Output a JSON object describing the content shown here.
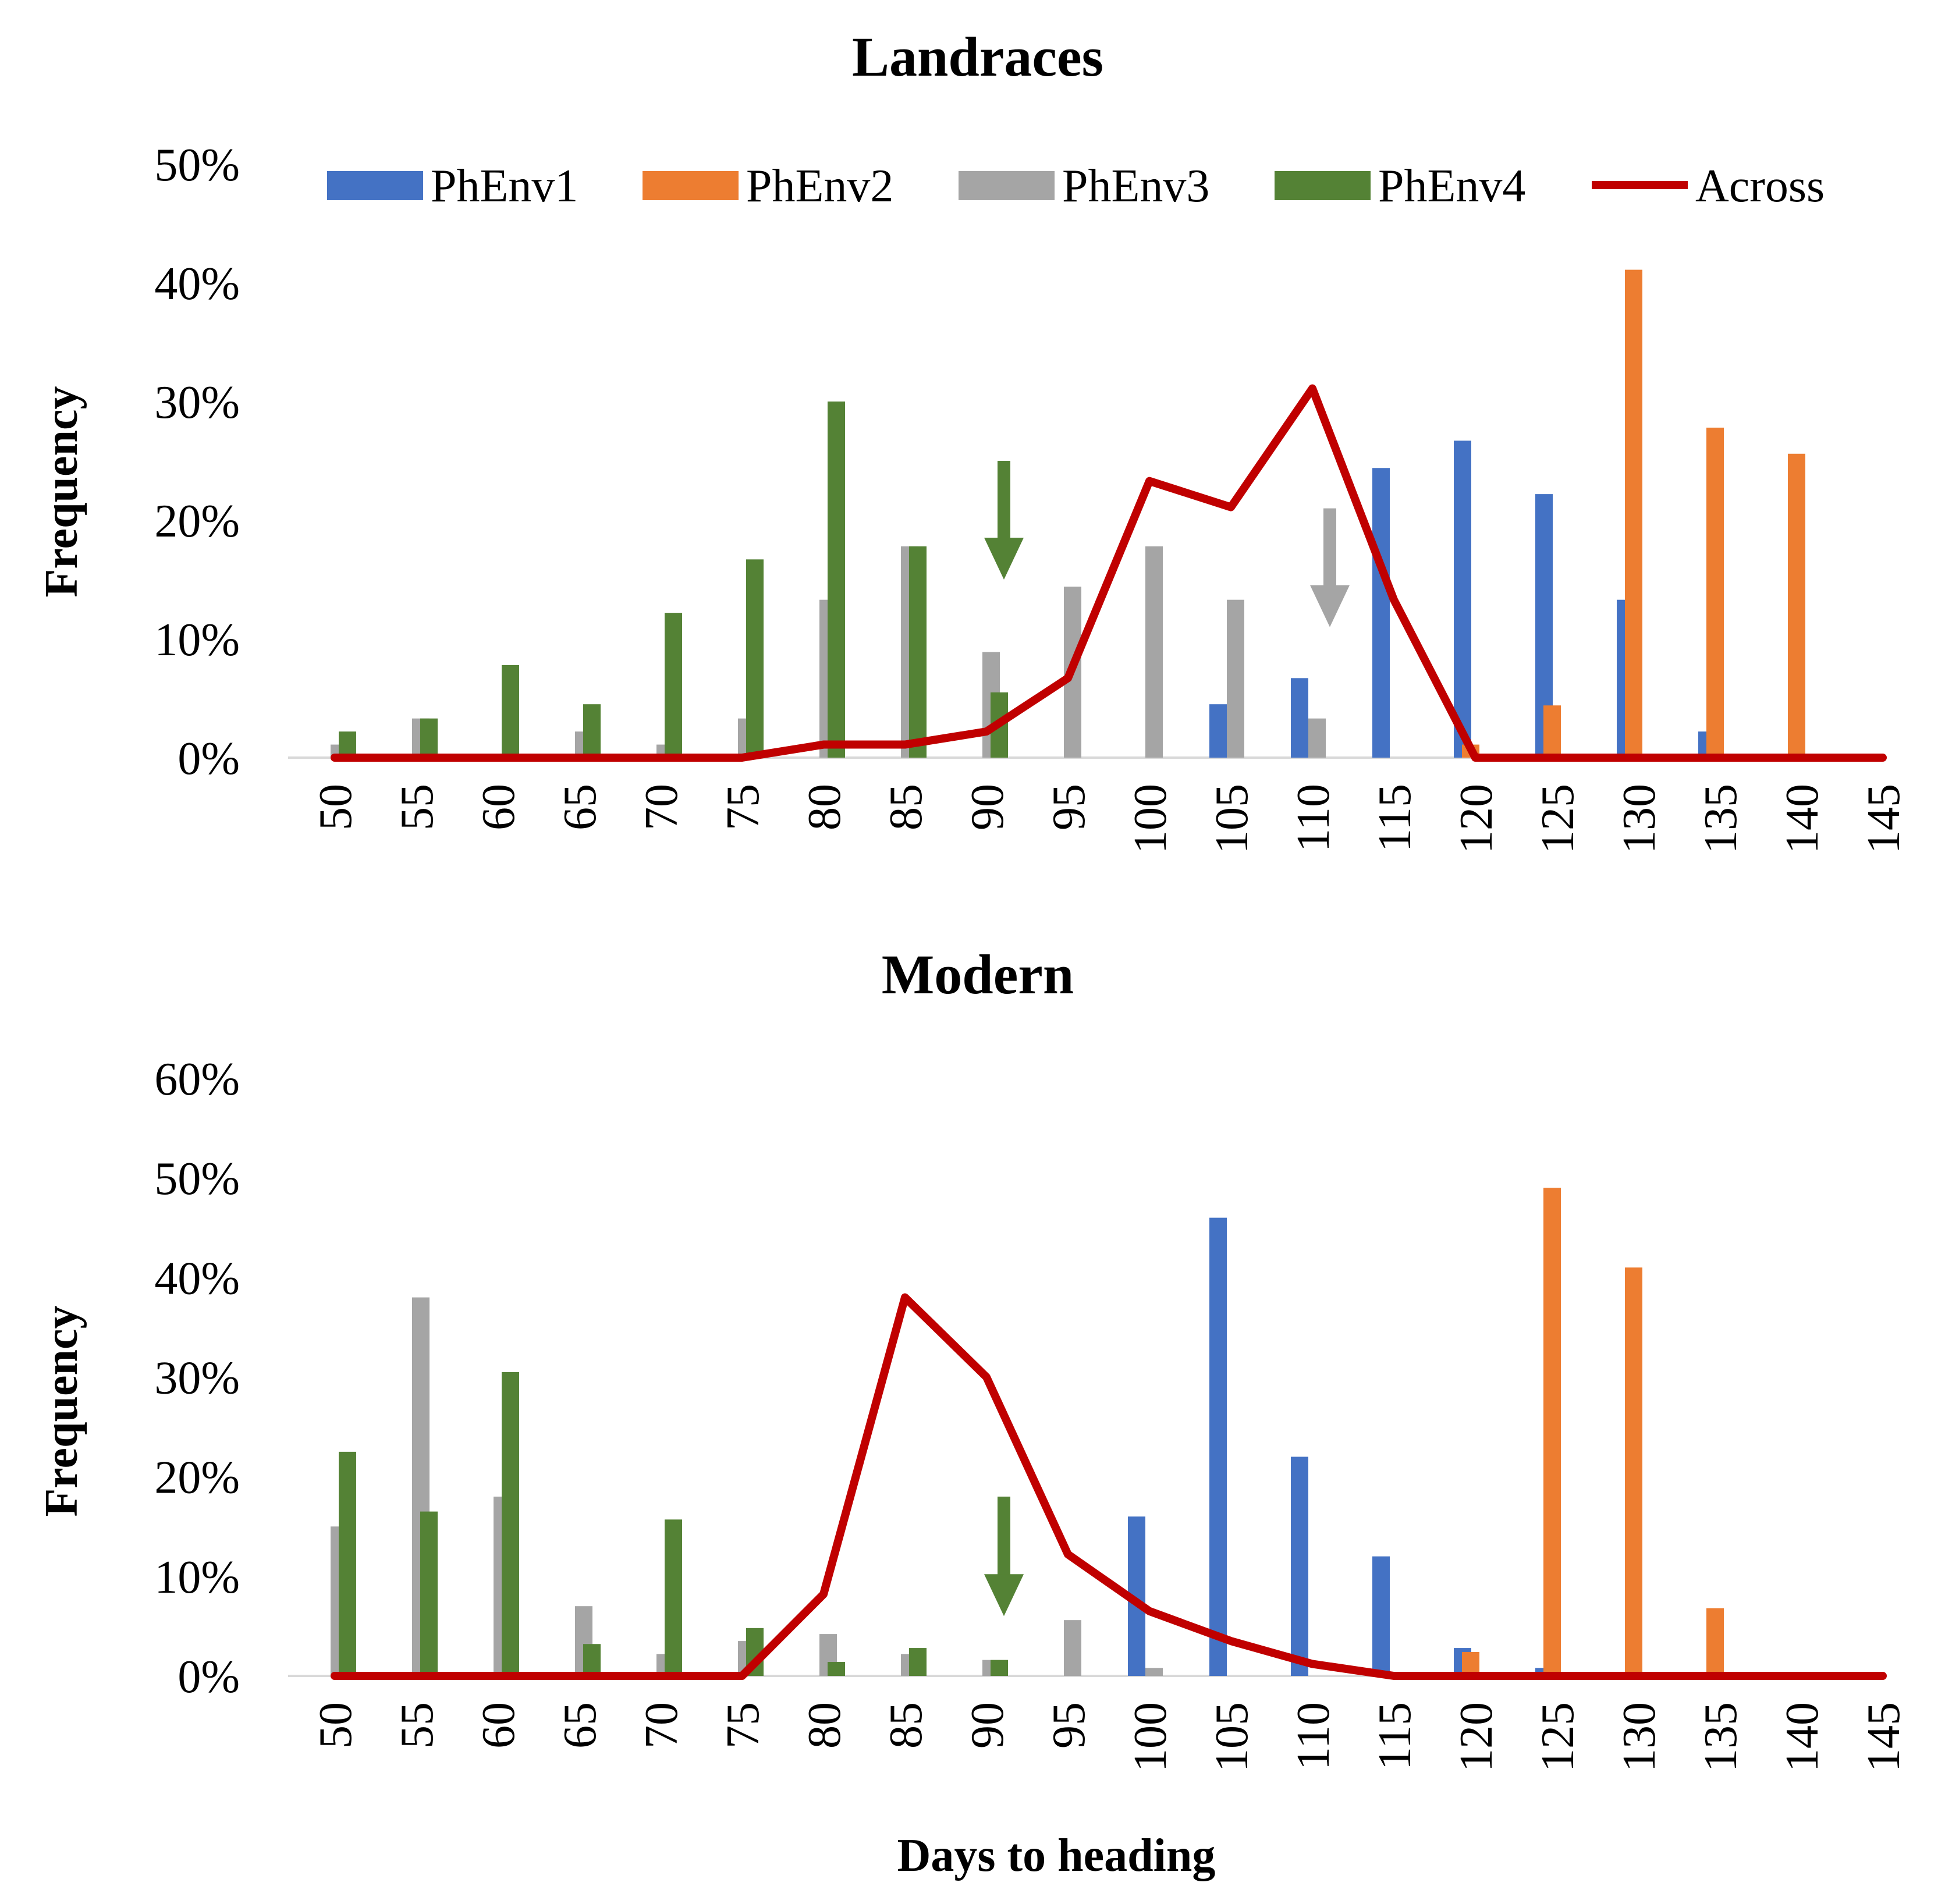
{
  "colors": {
    "PhEnv1": "#4472c4",
    "PhEnv2": "#ed7d31",
    "PhEnv3": "#a5a5a5",
    "PhEnv4": "#548235",
    "Across": "#c00000"
  },
  "legend": [
    "PhEnv1",
    "PhEnv2",
    "PhEnv3",
    "PhEnv4",
    "Across"
  ],
  "xlabel": "Days to heading",
  "chart_data": [
    {
      "type": "bar",
      "title": "Landraces",
      "ylabel": "Frequency",
      "ylim": [
        0,
        0.5
      ],
      "yticks": [
        "0%",
        "10%",
        "20%",
        "30%",
        "40%",
        "50%"
      ],
      "categories": [
        "50",
        "55",
        "60",
        "65",
        "70",
        "75",
        "80",
        "85",
        "90",
        "95",
        "100",
        "105",
        "110",
        "115",
        "120",
        "125",
        "130",
        "135",
        "140",
        "145"
      ],
      "series": [
        {
          "name": "PhEnv1",
          "values": [
            0,
            0,
            0,
            0,
            0,
            0,
            0,
            0,
            0,
            0,
            0,
            0.045,
            0.067,
            0.244,
            0.267,
            0.222,
            0.133,
            0.022,
            0,
            0
          ]
        },
        {
          "name": "PhEnv2",
          "values": [
            0,
            0,
            0,
            0,
            0,
            0,
            0,
            0,
            0,
            0,
            0,
            0,
            0,
            0,
            0.011,
            0.044,
            0.411,
            0.278,
            0.256,
            0
          ]
        },
        {
          "name": "PhEnv3",
          "values": [
            0.011,
            0.033,
            0,
            0.022,
            0.011,
            0.033,
            0.133,
            0.178,
            0.089,
            0.144,
            0.178,
            0.133,
            0.033,
            0,
            0,
            0,
            0,
            0,
            0,
            0
          ]
        },
        {
          "name": "PhEnv4",
          "values": [
            0.022,
            0.033,
            0.078,
            0.045,
            0.122,
            0.167,
            0.3,
            0.178,
            0.055,
            0,
            0,
            0,
            0,
            0,
            0,
            0,
            0,
            0,
            0,
            0
          ]
        },
        {
          "name": "Across",
          "kind": "line",
          "values": [
            0,
            0,
            0,
            0,
            0,
            0,
            0.011,
            0.011,
            0.022,
            0.067,
            0.233,
            0.211,
            0.311,
            0.133,
            0,
            0,
            0,
            0,
            0,
            0
          ]
        }
      ],
      "arrows": [
        {
          "color_key": "PhEnv4",
          "x": "90",
          "from": 0.25,
          "to": 0.15
        },
        {
          "color_key": "PhEnv3",
          "x": "110",
          "from": 0.21,
          "to": 0.11
        }
      ]
    },
    {
      "type": "bar",
      "title": "Modern",
      "ylabel": "Frequency",
      "ylim": [
        0,
        0.6
      ],
      "yticks": [
        "0%",
        "10%",
        "20%",
        "30%",
        "40%",
        "50%",
        "60%"
      ],
      "categories": [
        "50",
        "55",
        "60",
        "65",
        "70",
        "75",
        "80",
        "85",
        "90",
        "95",
        "100",
        "105",
        "110",
        "115",
        "120",
        "125",
        "130",
        "135",
        "140",
        "145"
      ],
      "series": [
        {
          "name": "PhEnv1",
          "values": [
            0,
            0,
            0,
            0,
            0,
            0,
            0,
            0,
            0,
            0,
            0.16,
            0.46,
            0.22,
            0.12,
            0.028,
            0.008,
            0,
            0,
            0,
            0
          ]
        },
        {
          "name": "PhEnv2",
          "values": [
            0,
            0,
            0,
            0,
            0,
            0,
            0,
            0,
            0,
            0,
            0,
            0,
            0,
            0,
            0.024,
            0.49,
            0.41,
            0.068,
            0,
            0
          ]
        },
        {
          "name": "PhEnv3",
          "values": [
            0.15,
            0.38,
            0.18,
            0.07,
            0.022,
            0.035,
            0.042,
            0.022,
            0.016,
            0.056,
            0.008,
            0,
            0,
            0,
            0,
            0,
            0,
            0,
            0,
            0
          ]
        },
        {
          "name": "PhEnv4",
          "values": [
            0.225,
            0.165,
            0.305,
            0.032,
            0.157,
            0.048,
            0.014,
            0.028,
            0.016,
            0,
            0,
            0,
            0,
            0,
            0,
            0,
            0,
            0,
            0,
            0
          ]
        },
        {
          "name": "Across",
          "kind": "line",
          "values": [
            0,
            0,
            0,
            0,
            0,
            0,
            0.082,
            0.38,
            0.3,
            0.122,
            0.065,
            0.035,
            0.012,
            0,
            0,
            0,
            0,
            0,
            0,
            0
          ]
        }
      ],
      "arrows": [
        {
          "color_key": "PhEnv4",
          "x": "90",
          "from": 0.18,
          "to": 0.06
        }
      ]
    }
  ]
}
